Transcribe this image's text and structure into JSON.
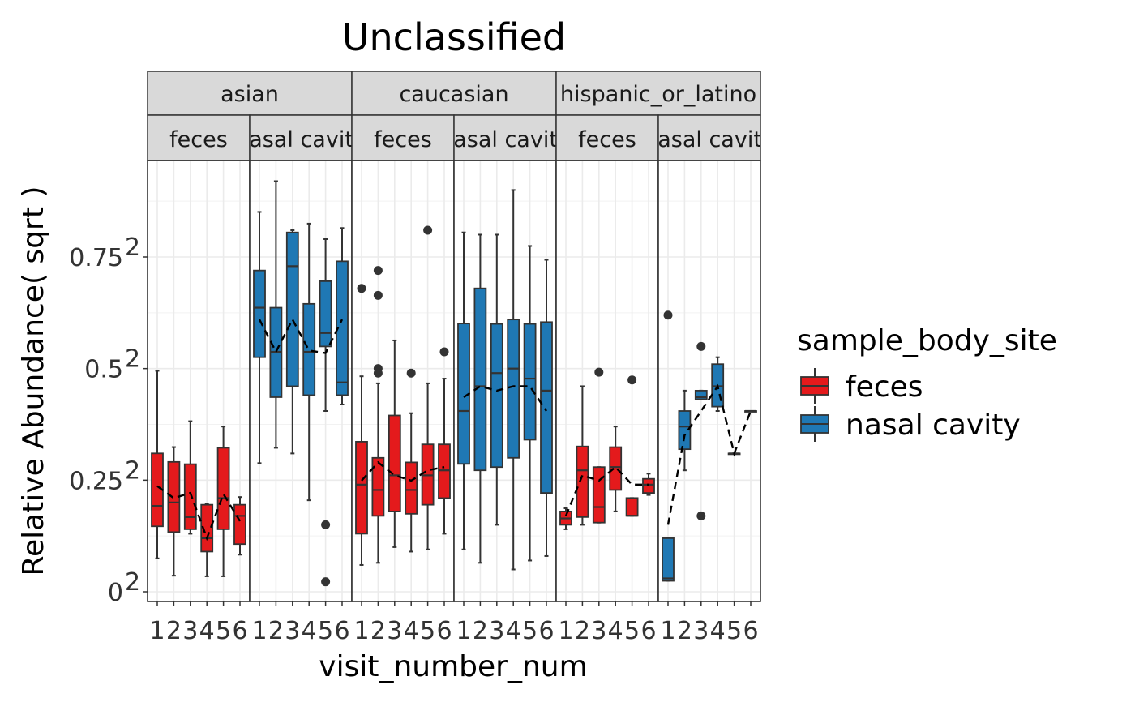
{
  "chart_data": {
    "type": "box",
    "title": "Unclassified",
    "xlabel": "visit_number_num",
    "ylabel": "Relative Abundance( sqrt )",
    "y_scale": "sqrt",
    "y_ticks": [
      {
        "value": 0,
        "base": "0",
        "exp": "2"
      },
      {
        "value": 0.25,
        "base": "0.25",
        "exp": "2"
      },
      {
        "value": 0.5,
        "base": "0.5",
        "exp": "2"
      },
      {
        "value": 0.75,
        "base": "0.75",
        "exp": "2"
      }
    ],
    "x_categories": [
      "1",
      "2",
      "3",
      "4",
      "5",
      "6"
    ],
    "legend": {
      "title": "sample_body_site",
      "position": "right",
      "entries": [
        {
          "label": "feces",
          "color": "#E41A1C"
        },
        {
          "label": "nasal cavity",
          "color": "#1F78B4"
        }
      ]
    },
    "facet_rows_top": [
      "asian",
      "caucasian",
      "hispanic_or_latino"
    ],
    "facet_rows_sub": [
      "feces",
      "nasal cavity"
    ],
    "panels": [
      {
        "group": "asian",
        "site": "feces",
        "color": "#E41A1C",
        "boxes": [
          {
            "x": 1,
            "q1": 0.0215,
            "median": 0.037,
            "q3": 0.0961,
            "lower": 0.0056,
            "upper": 0.245
          },
          {
            "x": 2,
            "q1": 0.0179,
            "median": 0.04,
            "q3": 0.0846,
            "lower": 0.0013,
            "upper": 0.105
          },
          {
            "x": 3,
            "q1": 0.0196,
            "median": 0.028,
            "q3": 0.0817,
            "lower": 0.0169,
            "upper": 0.146
          },
          {
            "x": 4,
            "q1": 0.0081,
            "median": 0.0144,
            "q3": 0.038,
            "lower": 0.0012,
            "upper": 0.039
          },
          {
            "x": 5,
            "q1": 0.0196,
            "median": 0.044,
            "q3": 0.104,
            "lower": 0.0012,
            "upper": 0.137
          },
          {
            "x": 6,
            "q1": 0.0114,
            "median": 0.0289,
            "q3": 0.038,
            "lower": 0.0069,
            "upper": 0.045
          }
        ],
        "outliers": [],
        "mean_line": [
          [
            1,
            0.056
          ],
          [
            2,
            0.044
          ],
          [
            3,
            0.049
          ],
          [
            4,
            0.0144
          ],
          [
            5,
            0.048
          ],
          [
            6,
            0.025
          ]
        ]
      },
      {
        "group": "asian",
        "site": "nasal cavity",
        "color": "#1F78B4",
        "boxes": [
          {
            "x": 1,
            "q1": 0.276,
            "median": 0.405,
            "q3": 0.518,
            "lower": 0.083,
            "upper": 0.724
          },
          {
            "x": 2,
            "q1": 0.19,
            "median": 0.289,
            "q3": 0.405,
            "lower": 0.104,
            "upper": 0.846
          },
          {
            "x": 3,
            "q1": 0.212,
            "median": 0.532,
            "q3": 0.648,
            "lower": 0.096,
            "upper": 0.656
          },
          {
            "x": 4,
            "q1": 0.194,
            "median": 0.289,
            "q3": 0.416,
            "lower": 0.042,
            "upper": 0.68
          },
          {
            "x": 5,
            "q1": 0.302,
            "median": 0.336,
            "q3": 0.484,
            "lower": 0.164,
            "upper": 0.624
          },
          {
            "x": 6,
            "q1": 0.194,
            "median": 0.22,
            "q3": 0.548,
            "lower": 0.176,
            "upper": 0.664
          }
        ],
        "outliers": [
          [
            5,
            0.0225
          ],
          [
            5,
            0.0005
          ]
        ],
        "mean_line": [
          [
            1,
            0.372
          ],
          [
            2,
            0.289
          ],
          [
            3,
            0.372
          ],
          [
            4,
            0.292
          ],
          [
            5,
            0.286
          ],
          [
            6,
            0.372
          ]
        ]
      },
      {
        "group": "caucasian",
        "site": "feces",
        "color": "#E41A1C",
        "boxes": [
          {
            "x": 1,
            "q1": 0.0169,
            "median": 0.0576,
            "q3": 0.113,
            "lower": 0.0036,
            "upper": 0.233
          },
          {
            "x": 2,
            "q1": 0.0289,
            "median": 0.052,
            "q3": 0.09,
            "lower": 0.0042,
            "upper": 0.218
          },
          {
            "x": 3,
            "q1": 0.0324,
            "median": 0.068,
            "q3": 0.156,
            "lower": 0.01,
            "upper": 0.317
          },
          {
            "x": 4,
            "q1": 0.0305,
            "median": 0.052,
            "q3": 0.084,
            "lower": 0.0081,
            "upper": 0.16
          },
          {
            "x": 5,
            "q1": 0.038,
            "median": 0.068,
            "q3": 0.109,
            "lower": 0.009,
            "upper": 0.218
          },
          {
            "x": 6,
            "q1": 0.044,
            "median": 0.074,
            "q3": 0.109,
            "lower": 0.0169,
            "upper": 0.228
          }
        ],
        "outliers": [
          [
            1,
            0.462
          ],
          [
            2,
            0.518
          ],
          [
            2,
            0.441
          ],
          [
            2,
            0.25
          ],
          [
            2,
            0.24
          ],
          [
            4,
            0.24
          ],
          [
            5,
            0.656
          ],
          [
            6,
            0.289
          ]
        ],
        "mean_line": [
          [
            1,
            0.062
          ],
          [
            2,
            0.084
          ],
          [
            3,
            0.068
          ],
          [
            4,
            0.062
          ],
          [
            5,
            0.074
          ],
          [
            6,
            0.078
          ]
        ]
      },
      {
        "group": "caucasian",
        "site": "nasal cavity",
        "color": "#1F78B4",
        "boxes": [
          {
            "x": 1,
            "q1": 0.082,
            "median": 0.164,
            "q3": 0.361,
            "lower": 0.009,
            "upper": 0.648
          },
          {
            "x": 2,
            "q1": 0.074,
            "median": 0.212,
            "q3": 0.462,
            "lower": 0.0042,
            "upper": 0.64
          },
          {
            "x": 3,
            "q1": 0.078,
            "median": 0.24,
            "q3": 0.36,
            "lower": 0.0225,
            "upper": 0.64
          },
          {
            "x": 4,
            "q1": 0.09,
            "median": 0.25,
            "q3": 0.372,
            "lower": 0.0025,
            "upper": 0.81
          },
          {
            "x": 5,
            "q1": 0.116,
            "median": 0.228,
            "q3": 0.36,
            "lower": 0.0049,
            "upper": 0.6
          },
          {
            "x": 6,
            "q1": 0.049,
            "median": 0.203,
            "q3": 0.365,
            "lower": 0.0064,
            "upper": 0.553
          }
        ],
        "outliers": [],
        "mean_line": [
          [
            1,
            0.19
          ],
          [
            2,
            0.212
          ],
          [
            3,
            0.203
          ],
          [
            4,
            0.212
          ],
          [
            5,
            0.212
          ],
          [
            6,
            0.164
          ]
        ]
      },
      {
        "group": "hispanic_or_latino",
        "site": "feces",
        "color": "#E41A1C",
        "boxes": [
          {
            "x": 1,
            "q1": 0.0225,
            "median": 0.027,
            "q3": 0.0324,
            "lower": 0.0196,
            "upper": 0.035
          },
          {
            "x": 2,
            "q1": 0.028,
            "median": 0.074,
            "q3": 0.106,
            "lower": 0.0225,
            "upper": 0.212
          },
          {
            "x": 3,
            "q1": 0.024,
            "median": 0.036,
            "q3": 0.078,
            "lower": 0.024,
            "upper": 0.078
          },
          {
            "x": 4,
            "q1": 0.052,
            "median": 0.078,
            "q3": 0.105,
            "lower": 0.0324,
            "upper": 0.137
          },
          {
            "x": 5,
            "q1": 0.0289,
            "median": 0.029,
            "q3": 0.0441,
            "lower": 0.0289,
            "upper": 0.0441
          },
          {
            "x": 6,
            "q1": 0.049,
            "median": 0.0576,
            "q3": 0.064,
            "lower": 0.047,
            "upper": 0.07
          }
        ],
        "outliers": [
          [
            3,
            0.242
          ],
          [
            5,
            0.225
          ]
        ],
        "mean_line": [
          [
            1,
            0.0289
          ],
          [
            2,
            0.068
          ],
          [
            3,
            0.062
          ],
          [
            4,
            0.078
          ],
          [
            5,
            0.0576
          ],
          [
            6,
            0.0576
          ]
        ]
      },
      {
        "group": "hispanic_or_latino",
        "site": "nasal cavity",
        "color": "#1F78B4",
        "boxes": [
          {
            "x": 1,
            "q1": 0.0006,
            "median": 0.0009,
            "q3": 0.0144,
            "lower": 0.0006,
            "upper": 0.0144
          },
          {
            "x": 2,
            "q1": 0.102,
            "median": 0.137,
            "q3": 0.164,
            "lower": 0.074,
            "upper": 0.203
          },
          {
            "x": 3,
            "q1": 0.186,
            "median": 0.19,
            "q3": 0.203,
            "lower": 0.186,
            "upper": 0.203
          },
          {
            "x": 4,
            "q1": 0.172,
            "median": 0.212,
            "q3": 0.26,
            "lower": 0.164,
            "upper": 0.276
          },
          {
            "x": 5,
            "q1": 0.096,
            "median": 0.096,
            "q3": 0.096,
            "lower": 0.096,
            "upper": 0.096
          },
          {
            "x": 6,
            "q1": 0.164,
            "median": 0.164,
            "q3": 0.164,
            "lower": 0.164,
            "upper": 0.164
          }
        ],
        "outliers": [
          [
            1,
            0.384
          ],
          [
            3,
            0.302
          ],
          [
            3,
            0.0289
          ]
        ],
        "mean_line": [
          [
            1,
            0.0225
          ],
          [
            2,
            0.123
          ],
          [
            3,
            0.164
          ],
          [
            4,
            0.212
          ],
          [
            5,
            0.096
          ],
          [
            6,
            0.164
          ]
        ]
      }
    ]
  }
}
